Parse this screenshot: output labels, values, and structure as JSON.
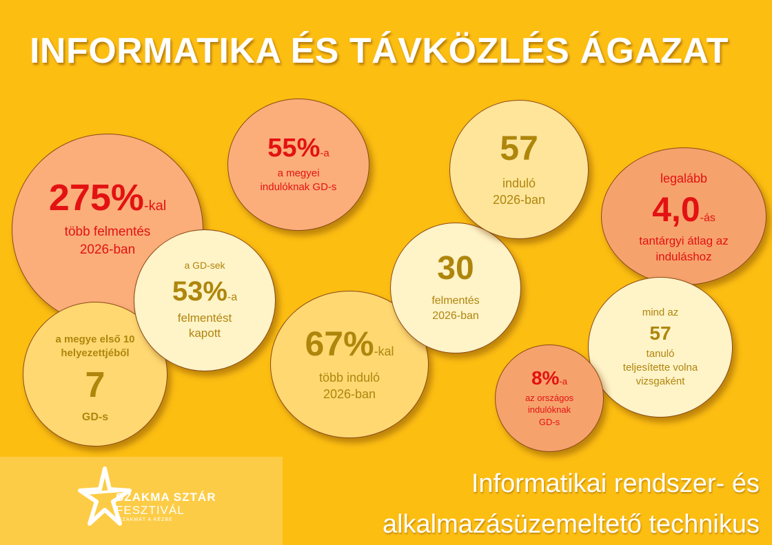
{
  "title": "INFORMATIKA ÉS TÁVKÖZLÉS ÁGAZAT",
  "bubbles": {
    "b275": {
      "value": "275%",
      "suffix": "-kal",
      "line1": "több felmentés",
      "line2": "2026-ban"
    },
    "b55": {
      "value": "55%",
      "suffix": "-a",
      "line1": "a megyei",
      "line2": "indulóknak GD-s"
    },
    "b57a": {
      "value": "57",
      "line1": "induló",
      "line2": "2026-ban"
    },
    "b40": {
      "top": "legalább",
      "value": "4,0",
      "suffix": "-ás",
      "line1": "tantárgyi átlag az",
      "line2": "induláshoz"
    },
    "b7": {
      "top1": "a megye első 10",
      "top2": "helyezettjéből",
      "value": "7",
      "line1": "GD-s"
    },
    "b53": {
      "top": "a GD-sek",
      "value": "53%",
      "suffix": "-a",
      "line1": "felmentést",
      "line2": "kapott"
    },
    "b30": {
      "value": "30",
      "line1": "felmentés",
      "line2": "2026-ban"
    },
    "b67": {
      "value": "67%",
      "suffix": "-kal",
      "line1": "több induló",
      "line2": "2026-ban"
    },
    "b8": {
      "value": "8%",
      "suffix": "-a",
      "line1": "az országos",
      "line2": "indulóknak",
      "line3": "GD-s"
    },
    "bmind": {
      "top": "mind az",
      "value": "57",
      "line1": "tanuló",
      "line2": "teljesítette volna",
      "line3": "vizsgaként"
    }
  },
  "logo": {
    "line1": "SZAKMA SZTÁR",
    "line2": "FESZTIVÁL",
    "line3": "SZAKMÁT A KÉZBE"
  },
  "subtitle": {
    "line1": "Informatikai rendszer- és",
    "line2": "alkalmazásüzemeltető technikus"
  }
}
